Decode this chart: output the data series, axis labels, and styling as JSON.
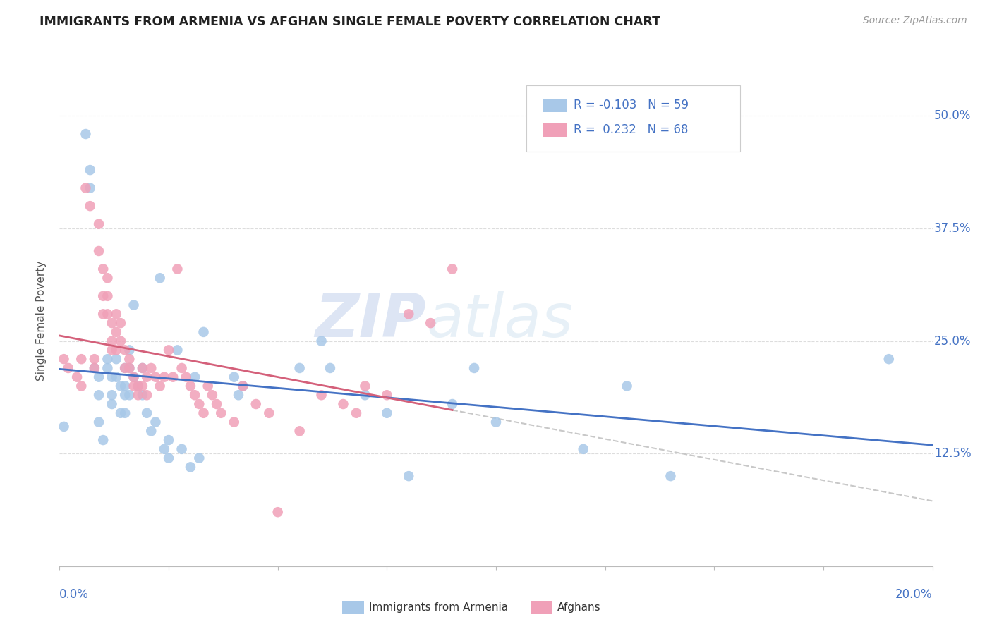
{
  "title": "IMMIGRANTS FROM ARMENIA VS AFGHAN SINGLE FEMALE POVERTY CORRELATION CHART",
  "source": "Source: ZipAtlas.com",
  "ylabel": "Single Female Poverty",
  "ytick_labels": [
    "12.5%",
    "25.0%",
    "37.5%",
    "50.0%"
  ],
  "ytick_values": [
    0.125,
    0.25,
    0.375,
    0.5
  ],
  "xlim": [
    0.0,
    0.2
  ],
  "ylim": [
    0.0,
    0.545
  ],
  "legend_r1": "R = -0.103",
  "legend_n1": "N = 59",
  "legend_r2": "R =  0.232",
  "legend_n2": "N = 68",
  "color_armenia": "#a8c8e8",
  "color_afghan": "#f0a0b8",
  "line_color_armenia": "#4472c4",
  "line_color_afghan": "#d4607a",
  "line_color_ext": "#c8c8c8",
  "watermark_zip": "ZIP",
  "watermark_atlas": "atlas",
  "armenia_x": [
    0.001,
    0.006,
    0.007,
    0.007,
    0.008,
    0.009,
    0.009,
    0.009,
    0.01,
    0.011,
    0.011,
    0.012,
    0.012,
    0.012,
    0.013,
    0.013,
    0.014,
    0.014,
    0.015,
    0.015,
    0.015,
    0.015,
    0.016,
    0.016,
    0.016,
    0.017,
    0.017,
    0.018,
    0.019,
    0.019,
    0.02,
    0.021,
    0.022,
    0.023,
    0.024,
    0.025,
    0.025,
    0.027,
    0.028,
    0.03,
    0.031,
    0.032,
    0.033,
    0.04,
    0.041,
    0.042,
    0.055,
    0.06,
    0.062,
    0.07,
    0.075,
    0.08,
    0.09,
    0.095,
    0.1,
    0.12,
    0.13,
    0.14,
    0.19
  ],
  "armenia_y": [
    0.155,
    0.48,
    0.44,
    0.42,
    0.22,
    0.21,
    0.19,
    0.16,
    0.14,
    0.23,
    0.22,
    0.21,
    0.19,
    0.18,
    0.23,
    0.21,
    0.2,
    0.17,
    0.22,
    0.2,
    0.19,
    0.17,
    0.24,
    0.22,
    0.19,
    0.29,
    0.21,
    0.2,
    0.22,
    0.19,
    0.17,
    0.15,
    0.16,
    0.32,
    0.13,
    0.14,
    0.12,
    0.24,
    0.13,
    0.11,
    0.21,
    0.12,
    0.26,
    0.21,
    0.19,
    0.2,
    0.22,
    0.25,
    0.22,
    0.19,
    0.17,
    0.1,
    0.18,
    0.22,
    0.16,
    0.13,
    0.2,
    0.1,
    0.23
  ],
  "afghan_x": [
    0.001,
    0.002,
    0.004,
    0.005,
    0.005,
    0.006,
    0.007,
    0.008,
    0.008,
    0.009,
    0.009,
    0.01,
    0.01,
    0.01,
    0.011,
    0.011,
    0.011,
    0.012,
    0.012,
    0.012,
    0.013,
    0.013,
    0.013,
    0.014,
    0.014,
    0.015,
    0.015,
    0.016,
    0.016,
    0.017,
    0.017,
    0.018,
    0.018,
    0.019,
    0.019,
    0.02,
    0.02,
    0.021,
    0.022,
    0.023,
    0.024,
    0.025,
    0.026,
    0.027,
    0.028,
    0.029,
    0.03,
    0.031,
    0.032,
    0.033,
    0.034,
    0.035,
    0.036,
    0.037,
    0.04,
    0.042,
    0.045,
    0.048,
    0.05,
    0.055,
    0.06,
    0.065,
    0.068,
    0.07,
    0.075,
    0.08,
    0.085,
    0.09
  ],
  "afghan_y": [
    0.23,
    0.22,
    0.21,
    0.23,
    0.2,
    0.42,
    0.4,
    0.23,
    0.22,
    0.38,
    0.35,
    0.33,
    0.3,
    0.28,
    0.32,
    0.3,
    0.28,
    0.27,
    0.25,
    0.24,
    0.28,
    0.26,
    0.24,
    0.27,
    0.25,
    0.24,
    0.22,
    0.23,
    0.22,
    0.21,
    0.2,
    0.2,
    0.19,
    0.22,
    0.2,
    0.21,
    0.19,
    0.22,
    0.21,
    0.2,
    0.21,
    0.24,
    0.21,
    0.33,
    0.22,
    0.21,
    0.2,
    0.19,
    0.18,
    0.17,
    0.2,
    0.19,
    0.18,
    0.17,
    0.16,
    0.2,
    0.18,
    0.17,
    0.06,
    0.15,
    0.19,
    0.18,
    0.17,
    0.2,
    0.19,
    0.28,
    0.27,
    0.33
  ]
}
